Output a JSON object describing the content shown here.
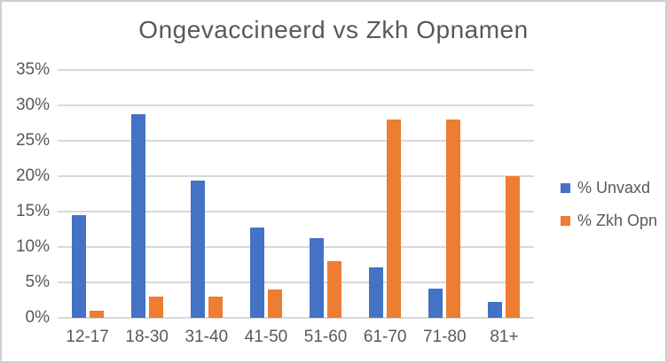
{
  "window": {
    "background": "#ffffff",
    "border_color": "#d0cece",
    "text_color": "#595959",
    "gridline_color": "#d9d9d9"
  },
  "chart_data": {
    "type": "bar",
    "title": "Ongevaccineerd vs Zkh Opnamen",
    "categories": [
      "12-17",
      "18-30",
      "31-40",
      "41-50",
      "51-60",
      "61-70",
      "71-80",
      "81+"
    ],
    "series": [
      {
        "name": "% Unvaxd",
        "color": "#4472C4",
        "values": [
          14.5,
          28.7,
          19.4,
          12.8,
          11.3,
          7.1,
          4.1,
          2.3
        ]
      },
      {
        "name": "% Zkh Opn",
        "color": "#ED7D31",
        "values": [
          1,
          3,
          3,
          4,
          8,
          28,
          28,
          20
        ]
      }
    ],
    "xlabel": "",
    "ylabel": "",
    "ylim": [
      0,
      35
    ],
    "ytick_step": 5,
    "ytick_labels": [
      "0%",
      "5%",
      "10%",
      "15%",
      "20%",
      "25%",
      "30%",
      "35%"
    ],
    "grid": true,
    "legend_position": "right"
  }
}
